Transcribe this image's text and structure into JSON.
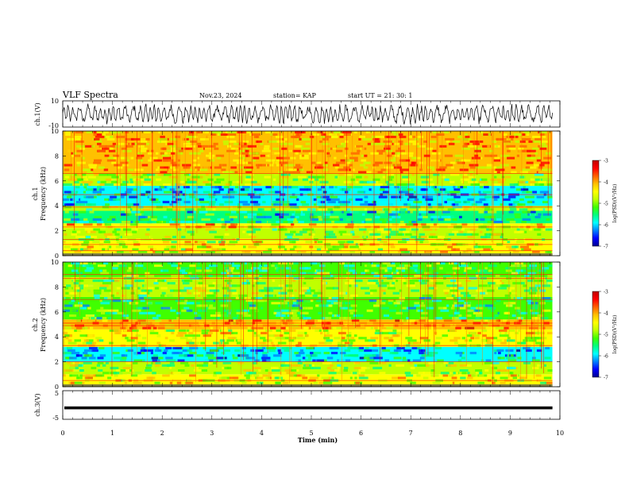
{
  "header": {
    "title": "VLF Spectra",
    "date": "Nov.23, 2024",
    "station": "station= KAP",
    "start": "start  UT  =   21: 30: 1"
  },
  "panels": {
    "ch1_wave": {
      "ylabel": "ch.1(V)",
      "yticks": [
        "10",
        "-10"
      ]
    },
    "ch1_spec": {
      "ylabel": "ch.1",
      "ylabel2": "Frequency (kHz)",
      "yticks": [
        "0",
        "2",
        "4",
        "6",
        "8",
        "10"
      ]
    },
    "ch2_spec": {
      "ylabel": "ch.2",
      "ylabel2": "Frequency (kHz)",
      "yticks": [
        "0",
        "2",
        "4",
        "6",
        "8",
        "10"
      ]
    },
    "ch3_wave": {
      "ylabel": "ch.3(V)",
      "yticks": [
        "5",
        "0",
        "-5"
      ]
    }
  },
  "colorbar": {
    "label": "log(PSD)(V²/Hz)",
    "ticks": [
      "-3",
      "-4",
      "-5",
      "-6",
      "-7"
    ],
    "colors": [
      "#000090",
      "#0000ff",
      "#0080ff",
      "#00ffff",
      "#00ff80",
      "#40ff00",
      "#c0ff00",
      "#ffff00",
      "#ffc000",
      "#ff6000",
      "#ff0000",
      "#c00000"
    ]
  },
  "xaxis": {
    "label": "Time (min)",
    "ticks": [
      "0",
      "1",
      "2",
      "3",
      "4",
      "5",
      "6",
      "7",
      "8",
      "9",
      "10"
    ]
  },
  "chart_data": [
    {
      "type": "line",
      "name": "ch.1 waveform",
      "ylabel": "ch.1(V)",
      "xlim": [
        0,
        10
      ],
      "ylim": [
        -10,
        10
      ],
      "description_values": {
        "amplitude_range": [
          -8,
          8
        ]
      }
    },
    {
      "type": "heatmap",
      "ylabel": "Frequency (kHz)",
      "xlim": [
        0,
        10
      ],
      "ylim": [
        0,
        10
      ],
      "zlabel": "log(PSD)(V²/Hz)",
      "zlim": [
        -7,
        -3
      ],
      "bands": [
        {
          "from": 0.0,
          "to": 1.2,
          "level": -4.6
        },
        {
          "from": 1.2,
          "to": 2.2,
          "level": -4.9
        },
        {
          "from": 2.2,
          "to": 2.6,
          "level": -4.4
        },
        {
          "from": 2.6,
          "to": 3.6,
          "level": -5.6
        },
        {
          "from": 3.6,
          "to": 4.0,
          "level": -5.0
        },
        {
          "from": 4.0,
          "to": 5.6,
          "level": -5.9
        },
        {
          "from": 5.6,
          "to": 6.6,
          "level": -4.9
        },
        {
          "from": 6.6,
          "to": 10.0,
          "level": -4.2
        }
      ],
      "lines_khz": [
        0.4,
        0.9,
        1.3,
        2.3,
        3.9,
        4.9,
        6.6
      ]
    },
    {
      "type": "heatmap",
      "ylabel": "Frequency (kHz)",
      "xlim": [
        0,
        10
      ],
      "ylim": [
        0,
        10
      ],
      "zlabel": "log(PSD)(V²/Hz)",
      "zlim": [
        -7,
        -3
      ],
      "bands": [
        {
          "from": 0.0,
          "to": 1.0,
          "level": -4.6
        },
        {
          "from": 1.0,
          "to": 2.0,
          "level": -4.9
        },
        {
          "from": 2.0,
          "to": 3.2,
          "level": -5.9
        },
        {
          "from": 3.2,
          "to": 4.6,
          "level": -4.6
        },
        {
          "from": 4.6,
          "to": 5.4,
          "level": -4.1
        },
        {
          "from": 5.4,
          "to": 7.2,
          "level": -5.3
        },
        {
          "from": 7.2,
          "to": 8.8,
          "level": -5.0
        },
        {
          "from": 8.8,
          "to": 10.0,
          "level": -5.2
        }
      ],
      "lines_khz": [
        0.5,
        2.0,
        3.3,
        4.9,
        5.1,
        7.0,
        8.7,
        9.0
      ]
    },
    {
      "type": "line",
      "name": "ch.3 waveform",
      "ylabel": "ch.3(V)",
      "xlim": [
        0,
        10
      ],
      "ylim": [
        -5,
        5
      ],
      "description_values": {
        "level": -1,
        "amplitude": 0.5
      }
    }
  ]
}
